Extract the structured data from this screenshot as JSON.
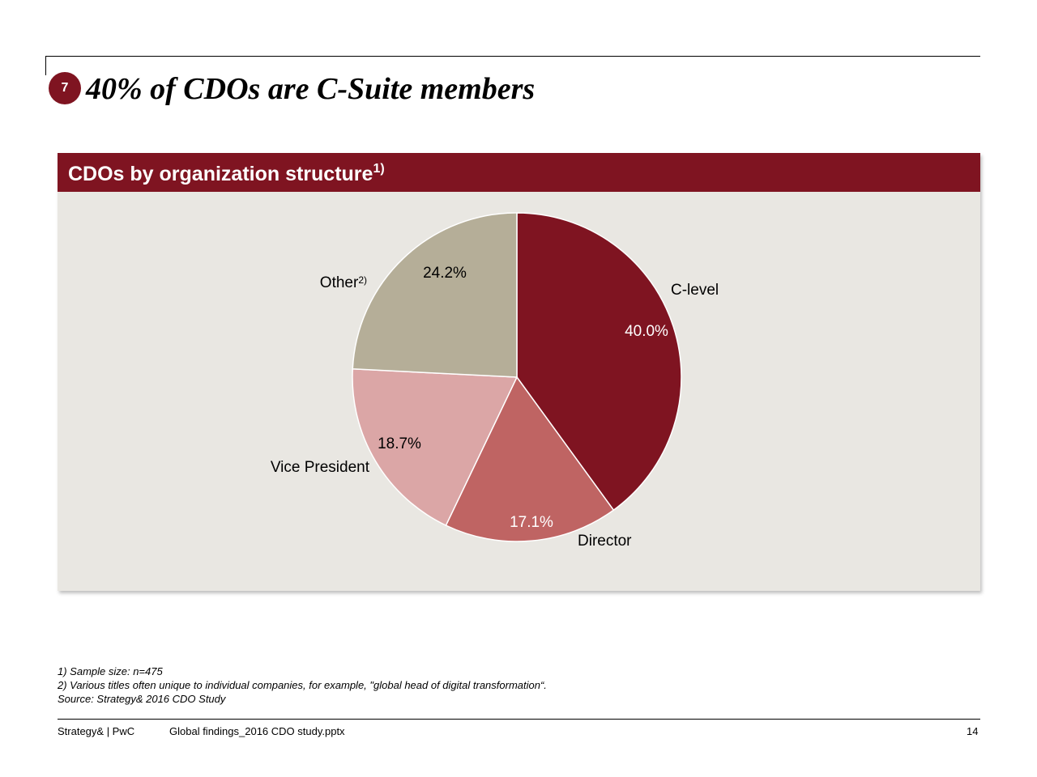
{
  "slide": {
    "badge_number": "7",
    "title": "40% of CDOs are C-Suite members",
    "panel_title": "CDOs by organization structure",
    "panel_title_note": "1)"
  },
  "chart_data": {
    "type": "pie",
    "title": "CDOs by organization structure",
    "slices": [
      {
        "label": "C-level",
        "note": "",
        "value": 40.0,
        "value_label": "40.0%",
        "color": "#7f1421",
        "value_text_color": "#ffffff"
      },
      {
        "label": "Director",
        "note": "",
        "value": 17.1,
        "value_label": "17.1%",
        "color": "#bf6463",
        "value_text_color": "#ffffff"
      },
      {
        "label": "Vice President",
        "note": "",
        "value": 18.7,
        "value_label": "18.7%",
        "color": "#dba6a6",
        "value_text_color": "#000000"
      },
      {
        "label": "Other",
        "note": "2)",
        "value": 24.2,
        "value_label": "24.2%",
        "color": "#b5ae98",
        "value_text_color": "#000000"
      }
    ],
    "start_angle": "12 o'clock",
    "direction": "clockwise"
  },
  "footnotes": [
    "1) Sample size: n=475",
    "2) Various titles often unique to individual companies, for example, \"global head of digital transformation“.",
    "Source: Strategy& 2016 CDO Study"
  ],
  "footer": {
    "brand": "Strategy& | PwC",
    "file_name": "Global findings_2016 CDO study.pptx",
    "page_number": "14"
  },
  "colors": {
    "accent": "#7f1421",
    "panel_background": "#e9e7e2"
  }
}
